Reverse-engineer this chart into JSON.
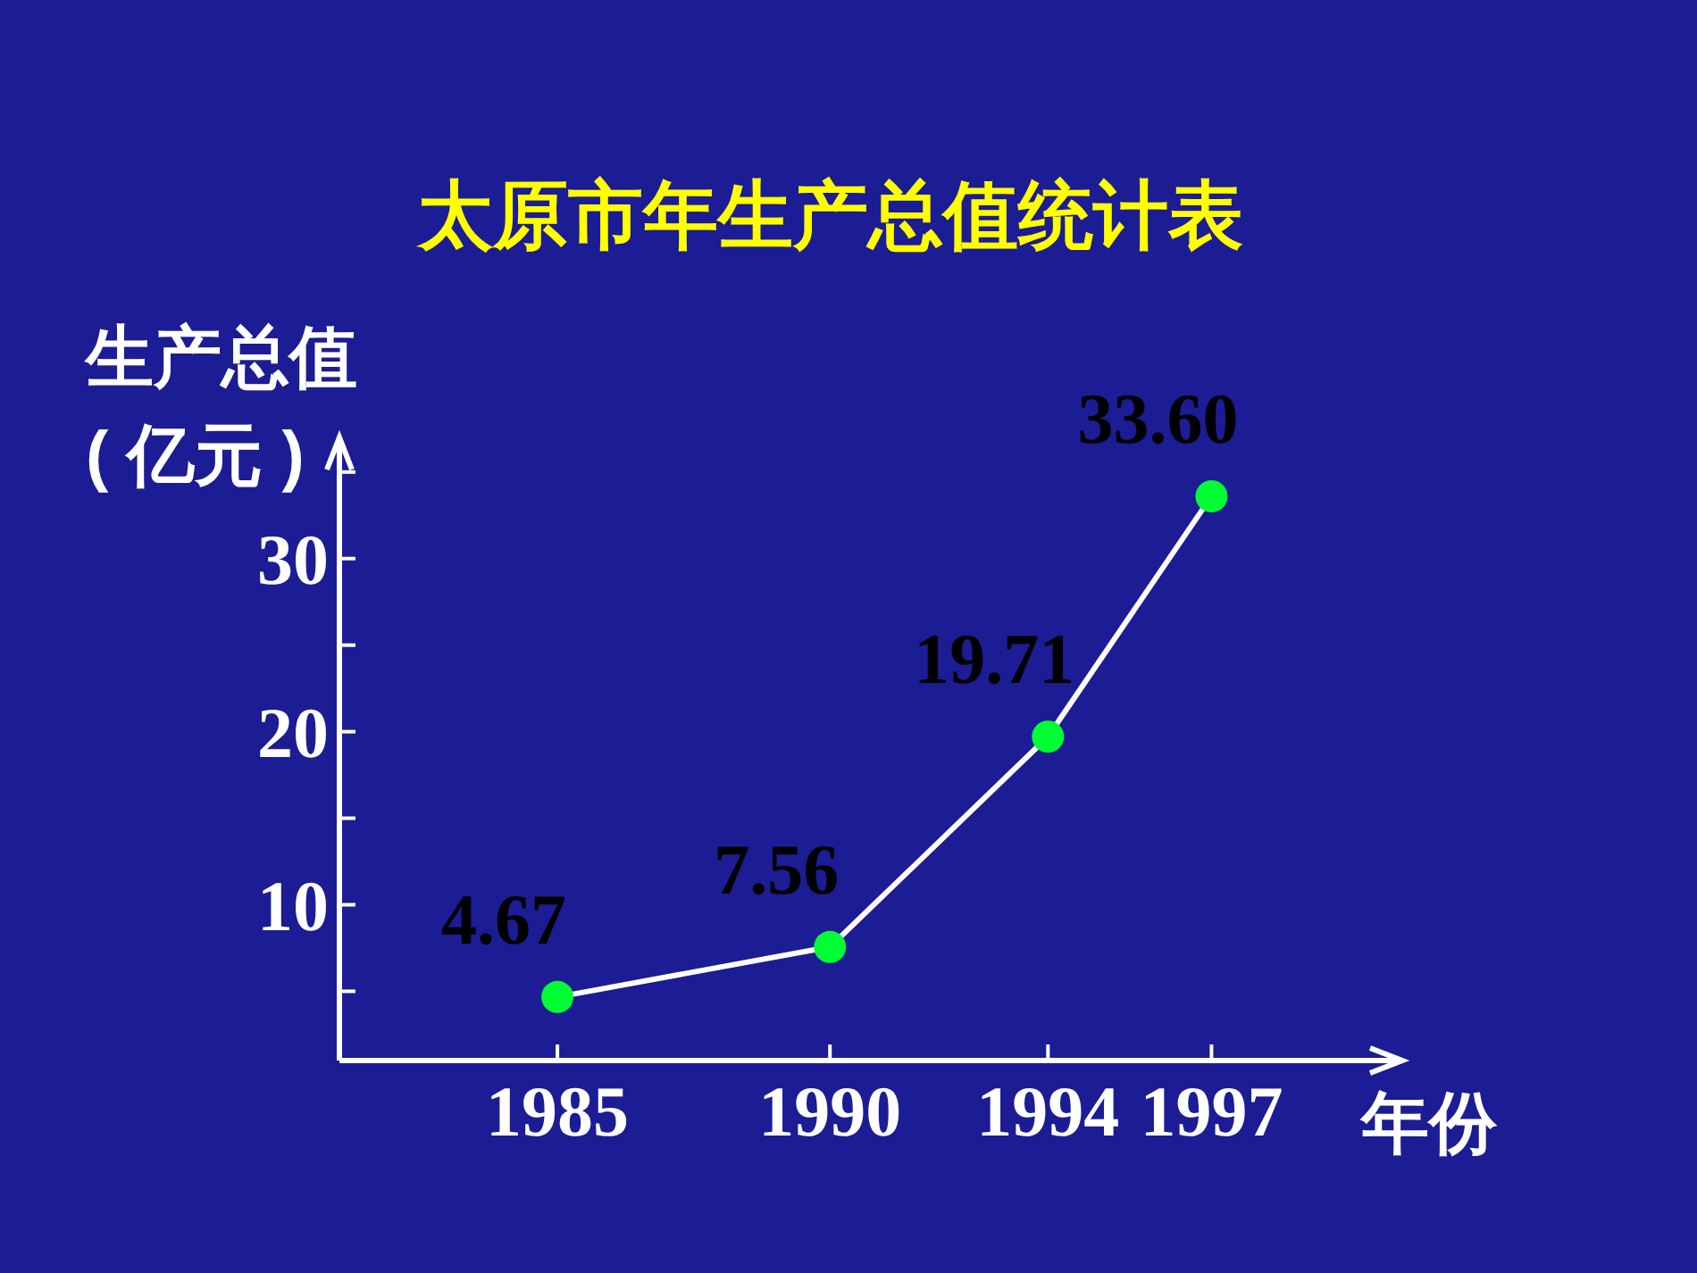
{
  "chart_data": {
    "type": "line",
    "title": "太原市年生产总值统计表",
    "xlabel": "年份",
    "ylabel": "生产总值\n( 亿元 )",
    "x": [
      1985,
      1990,
      1994,
      1997
    ],
    "series": [
      {
        "color": "#ffffff",
        "values": [
          4.67,
          7.56,
          19.71,
          33.6
        ],
        "value_labels": [
          "4.67",
          "7.56",
          "19.71",
          "33.60"
        ]
      }
    ],
    "xlim": [
      1981,
      2000.5
    ],
    "xticks": [
      1985,
      1990,
      1994,
      1997
    ],
    "ylim": [
      1,
      37
    ],
    "yticks": [
      {
        "value": 5,
        "label": null
      },
      10,
      {
        "value": 15,
        "label": null
      },
      20,
      {
        "value": 25,
        "label": null
      },
      30,
      {
        "value": 35,
        "label": null
      }
    ],
    "marker": "circle"
  }
}
